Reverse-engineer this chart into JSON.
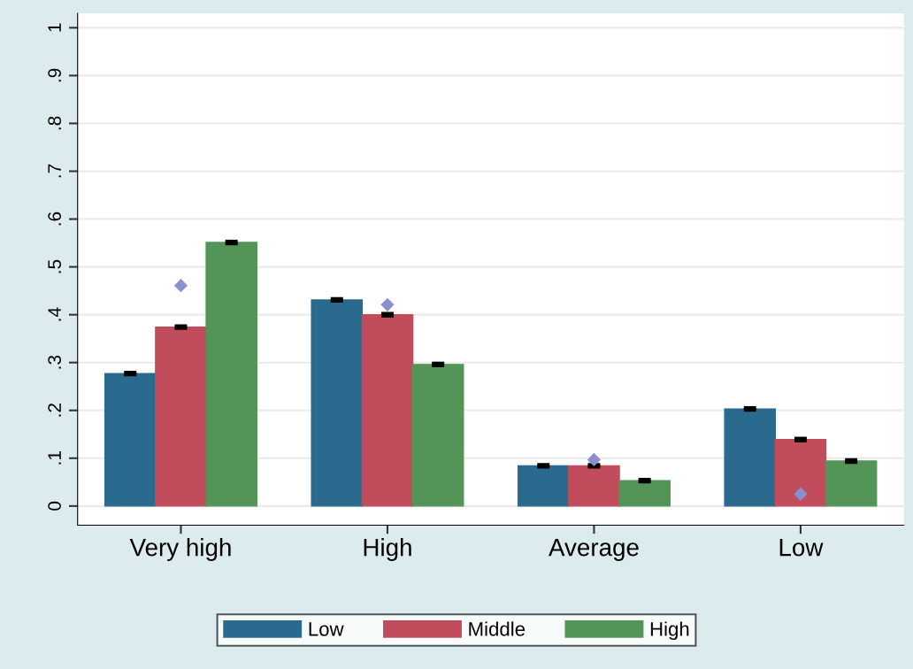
{
  "chart_data": {
    "type": "bar",
    "categories": [
      "Very high",
      "High",
      "Average",
      "Low"
    ],
    "series": [
      {
        "name": "Low",
        "color": "#2b6a8f",
        "values": [
          0.277,
          0.431,
          0.084,
          0.203
        ],
        "errors": [
          0.002,
          0.002,
          0.002,
          0.002
        ]
      },
      {
        "name": "Middle",
        "color": "#c14c5c",
        "values": [
          0.374,
          0.4,
          0.084,
          0.139
        ],
        "errors": [
          0.002,
          0.002,
          0.002,
          0.002
        ]
      },
      {
        "name": "High",
        "color": "#529557",
        "values": [
          0.551,
          0.296,
          0.053,
          0.094
        ],
        "errors": [
          0.002,
          0.002,
          0.002,
          0.002
        ]
      },
      {
        "type": "scatter",
        "color": "#8a8fd0",
        "x": [
          "Very high",
          "High",
          "Average",
          "Low"
        ],
        "values": [
          0.461,
          0.421,
          0.097,
          0.025
        ],
        "marker": "diamond"
      }
    ],
    "ylim": [
      -0.04,
      1.03
    ],
    "yticks": [
      0,
      {
        "value": 0.1,
        "label": ".1"
      },
      {
        "value": 0.2,
        "label": ".2"
      },
      {
        "value": 0.3,
        "label": ".3"
      },
      {
        "value": 0.4,
        "label": ".4"
      },
      {
        "value": 0.5,
        "label": ".5"
      },
      {
        "value": 0.6,
        "label": ".6"
      },
      {
        "value": 0.7,
        "label": ".7"
      },
      {
        "value": 0.8,
        "label": ".8"
      },
      {
        "value": 0.9,
        "label": ".9"
      },
      1
    ],
    "grid": "y",
    "legend": "bottom"
  }
}
